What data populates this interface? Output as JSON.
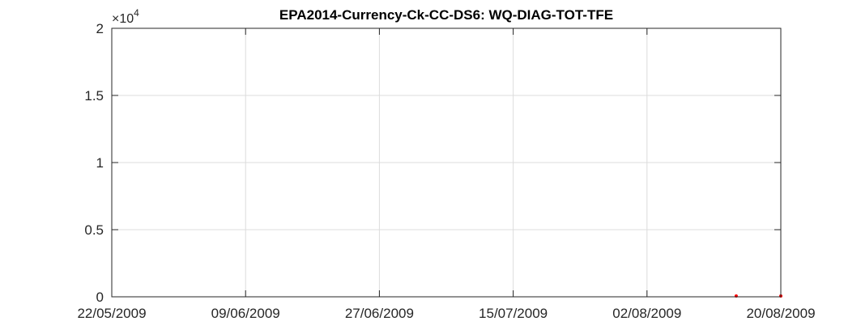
{
  "chart_data": {
    "type": "scatter",
    "title": "EPA2014-Currency-Ck-CC-DS6: WQ-DIAG-TOT-TFE",
    "xlabel": "",
    "ylabel": "",
    "y_multiplier_label": "×10",
    "y_multiplier_exponent": "4",
    "xlim": [
      "22/05/2009",
      "20/08/2009"
    ],
    "ylim": [
      0,
      20000
    ],
    "x_ticks": [
      "22/05/2009",
      "09/06/2009",
      "27/06/2009",
      "15/07/2009",
      "02/08/2009",
      "20/08/2009"
    ],
    "y_ticks": [
      {
        "value": 0,
        "label": "0"
      },
      {
        "value": 5000,
        "label": "0.5"
      },
      {
        "value": 10000,
        "label": "1"
      },
      {
        "value": 15000,
        "label": "1.5"
      },
      {
        "value": 20000,
        "label": "2"
      }
    ],
    "grid": true,
    "marker_color": "#ff0000",
    "points": [
      {
        "x": "14/08/2009",
        "y": 10
      },
      {
        "x": "20/08/2009",
        "y": 10
      }
    ]
  }
}
